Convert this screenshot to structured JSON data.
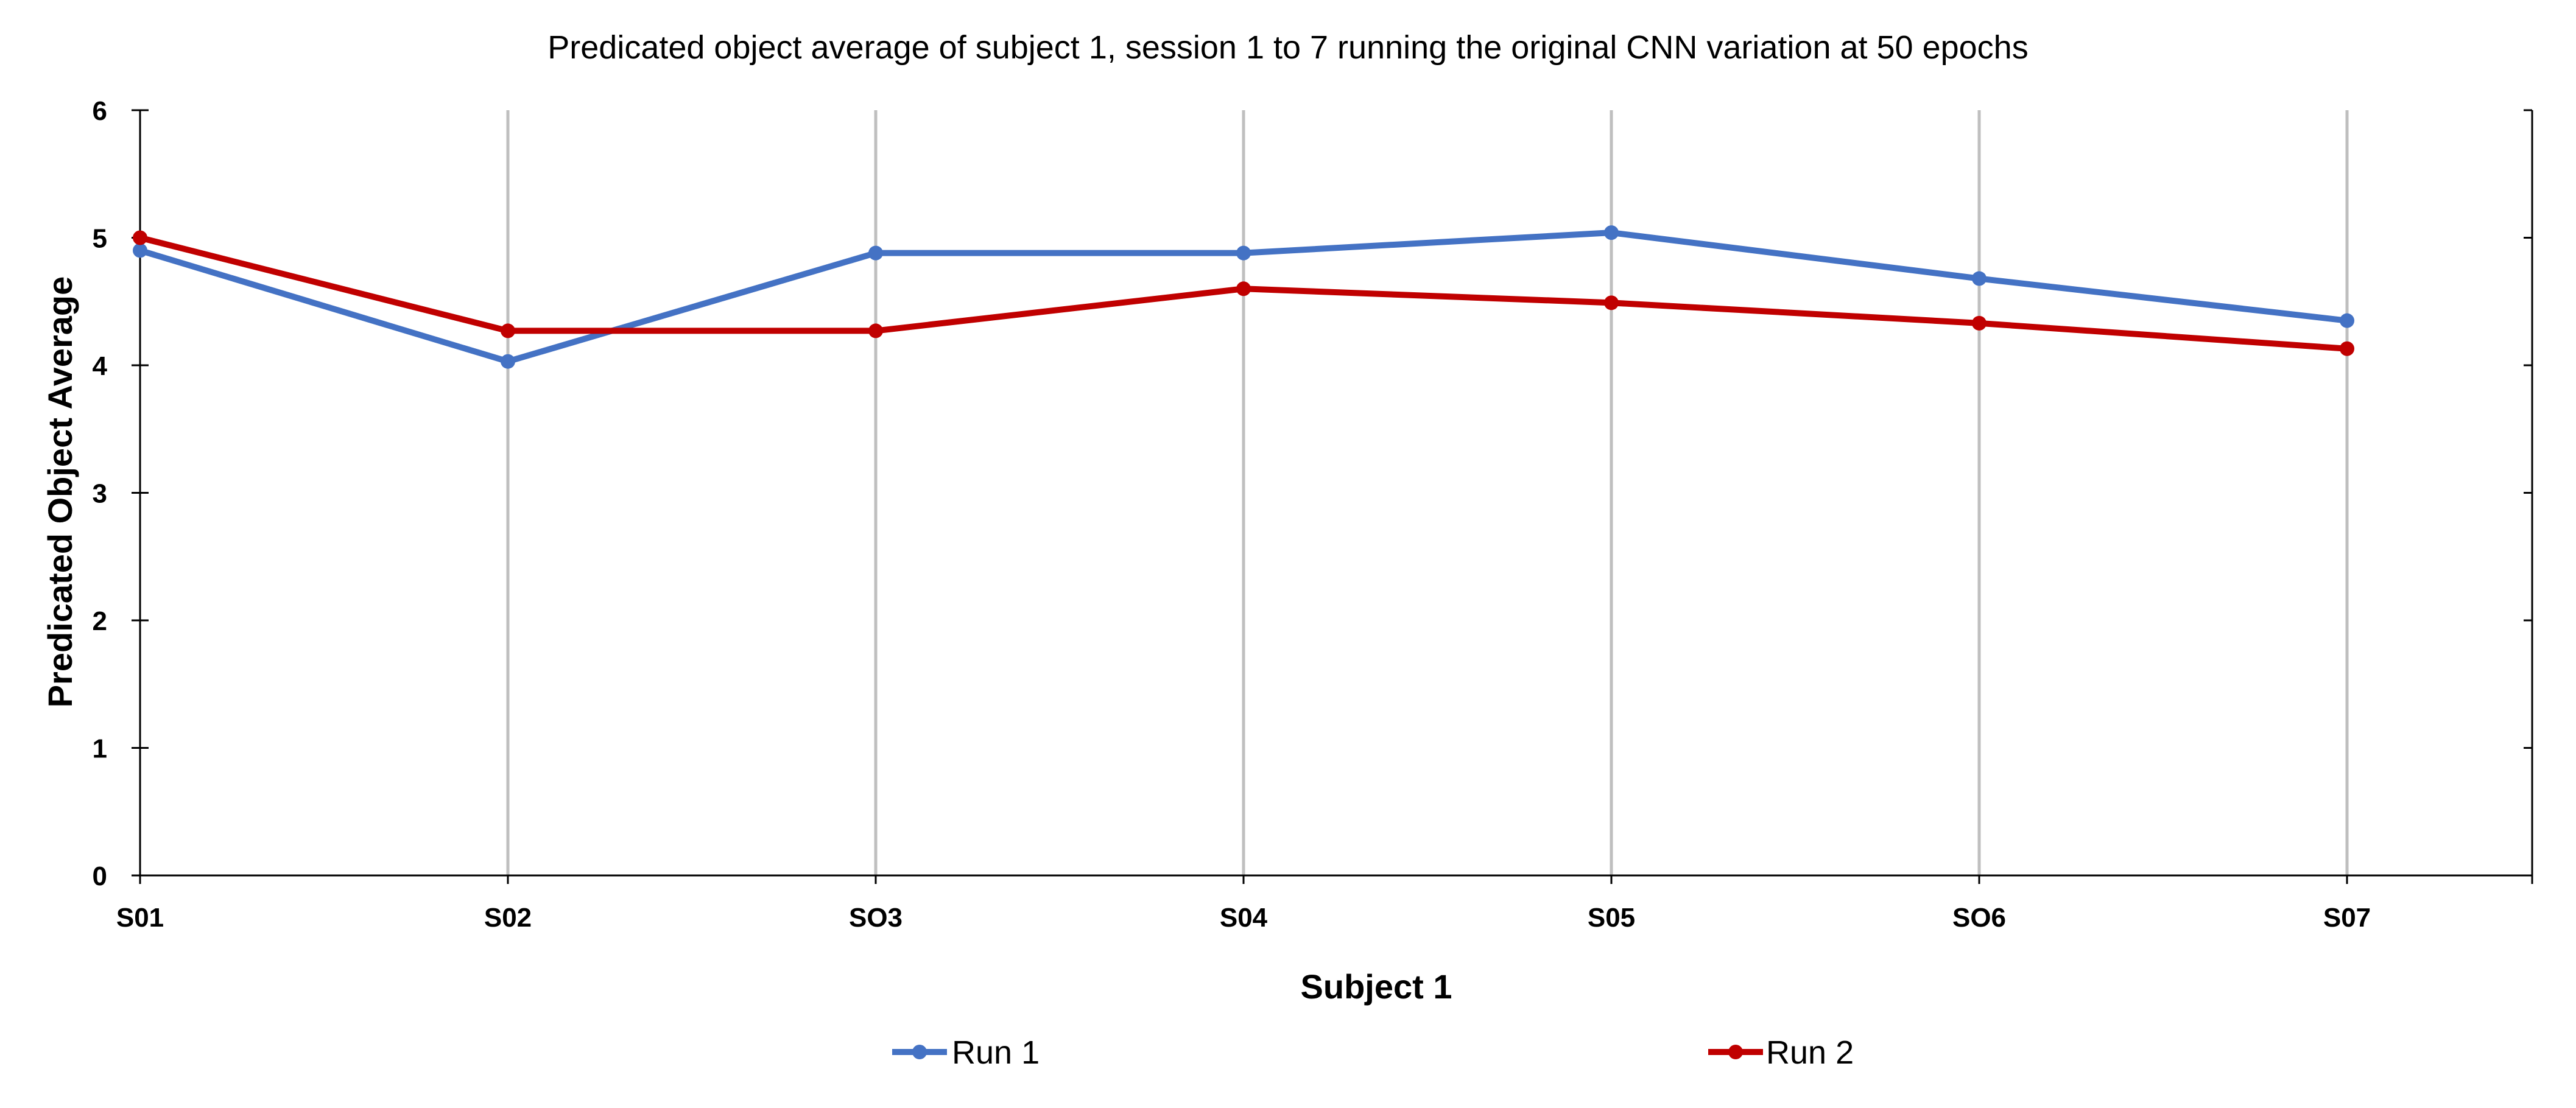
{
  "chart_data": {
    "type": "line",
    "title": "Predicated object average of subject 1, session 1 to 7 running the original CNN variation at 50 epochs",
    "xlabel": "Subject 1",
    "ylabel": "Predicated Object Average",
    "categories": [
      "S01",
      "S02",
      "SO3",
      "S04",
      "S05",
      "SO6",
      "S07"
    ],
    "ylim": [
      0,
      6
    ],
    "yticks": [
      0,
      1,
      2,
      3,
      4,
      5,
      6
    ],
    "grid": "vertical",
    "legend_position": "bottom",
    "series": [
      {
        "name": "Run 1",
        "color": "#4472C4",
        "values": [
          4.9,
          4.03,
          4.88,
          4.88,
          5.04,
          4.68,
          4.35
        ]
      },
      {
        "name": "Run 2",
        "color": "#C00000",
        "values": [
          5.0,
          4.27,
          4.27,
          4.6,
          4.49,
          4.33,
          4.13
        ]
      }
    ]
  }
}
